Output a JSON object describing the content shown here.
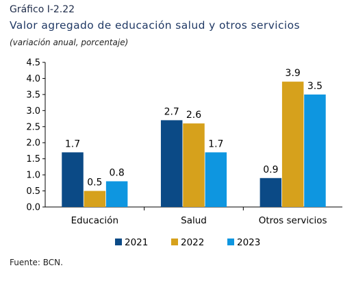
{
  "figure_label": "Gráfico I-2.22",
  "source": "Fuente: BCN.",
  "chart_data": {
    "type": "bar",
    "title": "Valor agregado de educación salud y otros servicios",
    "subtitle": "(variación anual, porcentaje)",
    "categories": [
      "Educación",
      "Salud",
      "Otros servicios"
    ],
    "series": [
      {
        "name": "2021",
        "color": "#0b4a86",
        "values": [
          1.7,
          2.7,
          0.9
        ]
      },
      {
        "name": "2022",
        "color": "#d6a11c",
        "values": [
          0.5,
          2.6,
          3.9
        ]
      },
      {
        "name": "2023",
        "color": "#0e96e0",
        "values": [
          0.8,
          1.7,
          3.5
        ]
      }
    ],
    "data_labels": [
      [
        "1.7",
        "2.7",
        "0.9"
      ],
      [
        "0.5",
        "2.6",
        "3.9"
      ],
      [
        "0.8",
        "1.7",
        "3.5"
      ]
    ],
    "yticks": [
      "0.0",
      "0.5",
      "1.0",
      "1.5",
      "2.0",
      "2.5",
      "3.0",
      "3.5",
      "4.0",
      "4.5"
    ],
    "ylim": [
      0,
      4.5
    ],
    "xlabel": "",
    "ylabel": "",
    "grid": false,
    "legend_position": "bottom"
  }
}
